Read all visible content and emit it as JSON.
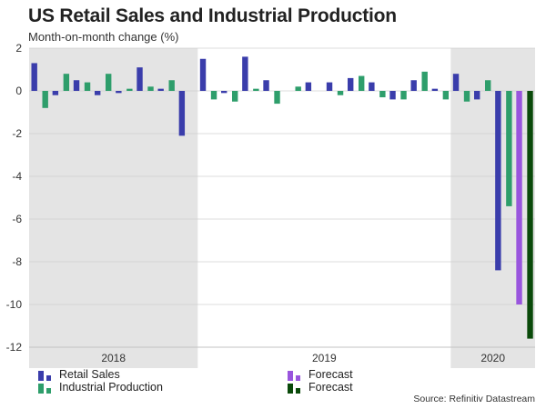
{
  "title": "US Retail Sales and Industrial Production",
  "subtitle": "Month-on-month change (%)",
  "source": "Source: Refinitiv Datastream",
  "colors": {
    "retail": "#3a3dab",
    "industrial": "#2e9e6b",
    "retail_forecast": "#9955dd",
    "industrial_forecast": "#0a4a0a",
    "shade": "#e4e4e4",
    "grid": "#d0d0d0"
  },
  "legend": {
    "retail": "Retail Sales",
    "industrial": "Industrial Production",
    "retail_forecast": "Forecast",
    "industrial_forecast": "Forecast"
  },
  "chart_data": {
    "type": "bar",
    "title": "US Retail Sales and Industrial Production",
    "ylabel": "Month-on-month change (%)",
    "ylim": [
      -12,
      2
    ],
    "yticks": [
      2,
      0,
      -2,
      -4,
      -6,
      -8,
      -10,
      -12
    ],
    "years": [
      {
        "label": "2018",
        "months": 8,
        "shaded": true
      },
      {
        "label": "2019",
        "months": 12,
        "shaded": false
      },
      {
        "label": "2020",
        "months": 4,
        "shaded": true
      }
    ],
    "series": [
      {
        "name": "Retail Sales",
        "key": "retail",
        "values": [
          1.3,
          -0.2,
          0.5,
          -0.2,
          -0.1,
          1.1,
          0.1,
          -2.1,
          1.5,
          -0.1,
          1.6,
          0.5,
          0.0,
          0.4,
          0.4,
          0.6,
          0.4,
          -0.4,
          0.5,
          0.1,
          0.8,
          -0.4,
          -8.4,
          null
        ]
      },
      {
        "name": "Industrial Production",
        "key": "industrial",
        "values": [
          -0.8,
          0.8,
          0.4,
          0.8,
          0.1,
          0.2,
          0.5,
          null,
          -0.4,
          -0.5,
          0.1,
          -0.6,
          0.2,
          0.0,
          -0.2,
          0.7,
          -0.3,
          -0.4,
          0.9,
          -0.4,
          -0.5,
          0.5,
          -5.4,
          null
        ]
      },
      {
        "name": "Forecast",
        "key": "retail_forecast",
        "values": [
          null,
          null,
          null,
          null,
          null,
          null,
          null,
          null,
          null,
          null,
          null,
          null,
          null,
          null,
          null,
          null,
          null,
          null,
          null,
          null,
          null,
          null,
          null,
          -10.0
        ]
      },
      {
        "name": "Forecast",
        "key": "industrial_forecast",
        "values": [
          null,
          null,
          null,
          null,
          null,
          null,
          null,
          null,
          null,
          null,
          null,
          null,
          null,
          null,
          null,
          null,
          null,
          null,
          null,
          null,
          null,
          null,
          null,
          -11.6
        ]
      }
    ]
  }
}
